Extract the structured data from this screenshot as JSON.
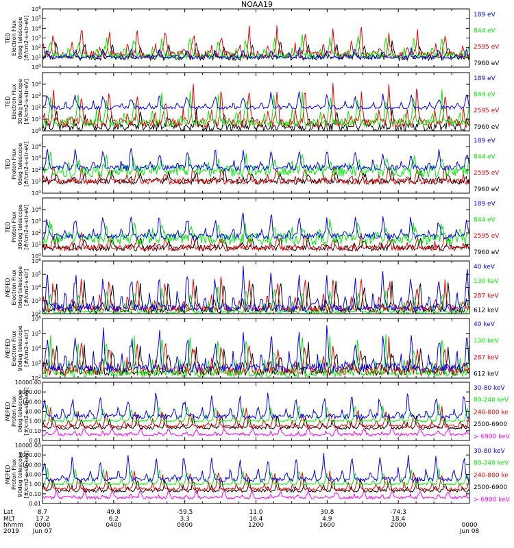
{
  "title": "NOAA19",
  "colors": {
    "black": "#000000",
    "red": "#ee0000",
    "green": "#00ee00",
    "blue": "#0000ff",
    "magenta": "#ff00ff"
  },
  "chart_data": [
    {
      "type": "line",
      "panel": 1,
      "ylabel": [
        "TED",
        "Electron Flux",
        "0deg telescope",
        "[#/cm2-s-str-eV]"
      ],
      "yscale": "log",
      "ylim": [
        1,
        1000000
      ],
      "yticks": [
        {
          "v": 1,
          "label": "10^0"
        },
        {
          "v": 10,
          "label": "10^1"
        },
        {
          "v": 100,
          "label": "10^2"
        },
        {
          "v": 1000,
          "label": "10^3"
        },
        {
          "v": 10000,
          "label": "10^4"
        },
        {
          "v": 100000,
          "label": "10^5"
        },
        {
          "v": 1000000,
          "label": "10^6"
        }
      ],
      "series": [
        {
          "name": "7960 eV",
          "color": "#000000",
          "base": 10,
          "peak": 500,
          "noise": 4
        },
        {
          "name": "2595 eV",
          "color": "#ee0000",
          "base": 20,
          "peak": 20000,
          "noise": 6
        },
        {
          "name": "844 eV",
          "color": "#00ee00",
          "base": 15,
          "peak": 2000,
          "noise": 4
        },
        {
          "name": "189 eV",
          "color": "#0000ff",
          "base": 10,
          "peak": 100,
          "noise": 2
        }
      ]
    },
    {
      "type": "line",
      "panel": 2,
      "ylabel": [
        "TED",
        "Electron Flux",
        "30deg telescope",
        "[#/cm2-s-str-eV]"
      ],
      "yscale": "log",
      "ylim": [
        1,
        100000
      ],
      "yticks": [
        {
          "v": 1,
          "label": "10^0"
        },
        {
          "v": 10,
          "label": "10^1"
        },
        {
          "v": 100,
          "label": "10^2"
        },
        {
          "v": 1000,
          "label": "10^3"
        },
        {
          "v": 10000,
          "label": "10^4"
        }
      ],
      "series": [
        {
          "name": "7960 eV",
          "color": "#000000",
          "base": 2,
          "peak": 50,
          "noise": 5
        },
        {
          "name": "2595 eV",
          "color": "#ee0000",
          "base": 5,
          "peak": 10000,
          "noise": 6
        },
        {
          "name": "844 eV",
          "color": "#00ee00",
          "base": 5,
          "peak": 3000,
          "noise": 4
        },
        {
          "name": "189 eV",
          "color": "#0000ff",
          "base": 100,
          "peak": 2000,
          "noise": 2
        }
      ]
    },
    {
      "type": "line",
      "panel": 3,
      "ylabel": [
        "TED",
        "Proton Flux",
        "0deg telescope",
        "[#/cm2-s-str-eV]"
      ],
      "yscale": "log",
      "ylim": [
        1,
        100000
      ],
      "yticks": [
        {
          "v": 1,
          "label": "10^0"
        },
        {
          "v": 10,
          "label": "10^1"
        },
        {
          "v": 100,
          "label": "10^2"
        },
        {
          "v": 1000,
          "label": "10^3"
        },
        {
          "v": 10000,
          "label": "10^4"
        }
      ],
      "series": [
        {
          "name": "7960 eV",
          "color": "#000000",
          "base": 10,
          "peak": 100,
          "noise": 3
        },
        {
          "name": "2595 eV",
          "color": "#ee0000",
          "base": 10,
          "peak": 300,
          "noise": 3
        },
        {
          "name": "844 eV",
          "color": "#00ee00",
          "base": 80,
          "peak": 2000,
          "noise": 10
        },
        {
          "name": "189 eV",
          "color": "#0000ff",
          "base": 150,
          "peak": 10000,
          "noise": 3
        }
      ]
    },
    {
      "type": "line",
      "panel": 4,
      "ylabel": [
        "TED",
        "Proton Flux",
        "30deg telescope",
        "[#/cm2-s-str-eV]"
      ],
      "yscale": "log",
      "ylim": [
        1,
        100000
      ],
      "yticks": [
        {
          "v": 1,
          "label": "10^0"
        },
        {
          "v": 10,
          "label": "10^1"
        },
        {
          "v": 100,
          "label": "10^2"
        },
        {
          "v": 1000,
          "label": "10^3"
        },
        {
          "v": 10000,
          "label": "10^4"
        }
      ],
      "series": [
        {
          "name": "7960 eV",
          "color": "#000000",
          "base": 5,
          "peak": 50,
          "noise": 3
        },
        {
          "name": "2595 eV",
          "color": "#ee0000",
          "base": 5,
          "peak": 100,
          "noise": 3
        },
        {
          "name": "844 eV",
          "color": "#00ee00",
          "base": 30,
          "peak": 1000,
          "noise": 10
        },
        {
          "name": "189 eV",
          "color": "#0000ff",
          "base": 50,
          "peak": 5000,
          "noise": 3
        }
      ]
    },
    {
      "type": "line",
      "panel": 5,
      "ylabel": [
        "MEPED",
        "Electron Flux",
        "0deg telescope",
        "[#/cm2-s-str]"
      ],
      "yscale": "log",
      "ylim": [
        100,
        1000000
      ],
      "yticks": [
        {
          "v": 100,
          "label": "10^2"
        },
        {
          "v": 1000,
          "label": "10^3"
        },
        {
          "v": 10000,
          "label": "10^4"
        },
        {
          "v": 100000,
          "label": "10^5"
        },
        {
          "v": 1000000,
          "label": "10^6"
        }
      ],
      "series": [
        {
          "name": "612 keV",
          "color": "#000000",
          "base": 200,
          "peak": 50000,
          "noise": 3
        },
        {
          "name": "287 keV",
          "color": "#ee0000",
          "base": 250,
          "peak": 100000,
          "noise": 3
        },
        {
          "name": "130 keV",
          "color": "#00ee00",
          "base": 130,
          "peak": 20000,
          "noise": 1.5
        },
        {
          "name": "40 keV",
          "color": "#0000ff",
          "base": 300,
          "peak": 300000,
          "noise": 4
        }
      ]
    },
    {
      "type": "line",
      "panel": 6,
      "ylabel": [
        "MEPED",
        "Electron Flux",
        "90deg telescope",
        "[#/cm2-s-str]"
      ],
      "yscale": "log",
      "ylim": [
        100,
        1000000
      ],
      "yticks": [
        {
          "v": 100,
          "label": "10^2"
        },
        {
          "v": 1000,
          "label": "10^3"
        },
        {
          "v": 10000,
          "label": "10^4"
        },
        {
          "v": 100000,
          "label": "10^5"
        },
        {
          "v": 1000000,
          "label": "10^6"
        }
      ],
      "series": [
        {
          "name": "612 keV",
          "color": "#000000",
          "base": 300,
          "peak": 20000,
          "noise": 4
        },
        {
          "name": "287 keV",
          "color": "#ee0000",
          "base": 300,
          "peak": 50000,
          "noise": 4
        },
        {
          "name": "130 keV",
          "color": "#00ee00",
          "base": 200,
          "peak": 100000,
          "noise": 3
        },
        {
          "name": "40 keV",
          "color": "#0000ff",
          "base": 500,
          "peak": 300000,
          "noise": 4
        }
      ]
    },
    {
      "type": "line",
      "panel": 7,
      "ylabel": [
        "MEPED",
        "Proton Flux",
        "0deg telescope",
        "[#/cm2-s-str-keV]"
      ],
      "yscale": "log",
      "ylim": [
        0.01,
        10000
      ],
      "yticks": [
        {
          "v": 0.01,
          "label": "0.01"
        },
        {
          "v": 0.1,
          "label": "0.10"
        },
        {
          "v": 1,
          "label": "1.00"
        },
        {
          "v": 10,
          "label": "10.00"
        },
        {
          "v": 100,
          "label": "100.00"
        },
        {
          "v": 1000,
          "label": "1000.00"
        },
        {
          "v": 10000,
          "label": "10000.00"
        }
      ],
      "series": [
        {
          "name": "> 6900 keV",
          "color": "#ff00ff",
          "base": 0.04,
          "peak": 0.3,
          "noise": 2
        },
        {
          "name": "2500-6900",
          "color": "#000000",
          "base": 0.2,
          "peak": 5,
          "noise": 2
        },
        {
          "name": "240-800 ke",
          "color": "#ee0000",
          "base": 0.3,
          "peak": 30,
          "noise": 2
        },
        {
          "name": "80-240 keV",
          "color": "#00ee00",
          "base": 1,
          "peak": 50,
          "noise": 1.5
        },
        {
          "name": "30-80 keV",
          "color": "#0000ff",
          "base": 3,
          "peak": 1000,
          "noise": 3
        }
      ]
    },
    {
      "type": "line",
      "panel": 8,
      "ylabel": [
        "MEPED",
        "Proton Flux",
        "90deg telescope",
        "[#/cm2-s-str-keV]"
      ],
      "yscale": "log",
      "ylim": [
        0.01,
        10000
      ],
      "yticks": [
        {
          "v": 0.01,
          "label": "0.01"
        },
        {
          "v": 0.1,
          "label": "0.10"
        },
        {
          "v": 1,
          "label": "1.00"
        },
        {
          "v": 10,
          "label": "10.00"
        },
        {
          "v": 100,
          "label": "100.00"
        },
        {
          "v": 1000,
          "label": "1000.00"
        },
        {
          "v": 10000,
          "label": "10000.00"
        }
      ],
      "series": [
        {
          "name": "> 6900 keV",
          "color": "#ff00ff",
          "base": 0.04,
          "peak": 0.3,
          "noise": 2
        },
        {
          "name": "2500-6900",
          "color": "#000000",
          "base": 0.2,
          "peak": 5,
          "noise": 2
        },
        {
          "name": "240-800 ke",
          "color": "#ee0000",
          "base": 0.3,
          "peak": 30,
          "noise": 2
        },
        {
          "name": "80-240 keV",
          "color": "#00ee00",
          "base": 1,
          "peak": 50,
          "noise": 1.5
        },
        {
          "name": "30-80 keV",
          "color": "#0000ff",
          "base": 3,
          "peak": 2000,
          "noise": 3
        }
      ]
    }
  ],
  "footer": {
    "row_labels": [
      "Lat",
      "MLT",
      "hhmm",
      "2019"
    ],
    "columns": [
      {
        "lat": "8.7",
        "mlt": "17.2",
        "hhmm": "0000",
        "date": "Jun 07"
      },
      {
        "lat": "49.8",
        "mlt": "6.2",
        "hhmm": "0400",
        "date": ""
      },
      {
        "lat": "-59.5",
        "mlt": "3.3",
        "hhmm": "0800",
        "date": ""
      },
      {
        "lat": "11.0",
        "mlt": "16.4",
        "hhmm": "1200",
        "date": ""
      },
      {
        "lat": "30.8",
        "mlt": "4.9",
        "hhmm": "1600",
        "date": ""
      },
      {
        "lat": "-74.3",
        "mlt": "18.4",
        "hhmm": "2000",
        "date": ""
      },
      {
        "lat": "",
        "mlt": "",
        "hhmm": "0000",
        "date": "Jun 08"
      }
    ]
  }
}
